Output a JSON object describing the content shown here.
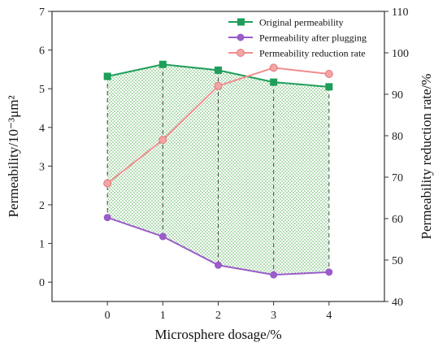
{
  "chart_data": {
    "type": "line",
    "title": "",
    "xlabel": "Microsphere dosage/%",
    "ylabel": "Permeability/10⁻³μm²",
    "y2label": "Permeability reduction rate/%",
    "x": [
      0,
      1,
      2,
      3,
      4
    ],
    "xlim": [
      -1,
      5
    ],
    "xticks": [
      "0",
      "1",
      "2",
      "3",
      "4"
    ],
    "ylim": [
      -0.5,
      7
    ],
    "yticks": [
      "0",
      "1",
      "2",
      "3",
      "4",
      "5",
      "6",
      "7"
    ],
    "y2lim": [
      40,
      110
    ],
    "y2ticks": [
      "40",
      "50",
      "60",
      "70",
      "80",
      "90",
      "100",
      "110"
    ],
    "grid": false,
    "legend_position": "top-right",
    "shaded_region": "between Original permeability and Permeability after plugging",
    "series": [
      {
        "name": "Original permeability",
        "axis": "left",
        "marker": "square",
        "color": "#1e9e5a",
        "values": [
          5.32,
          5.63,
          5.48,
          5.17,
          5.05
        ]
      },
      {
        "name": "Permeability after plugging",
        "axis": "left",
        "marker": "circle",
        "color": "#9a5cc8",
        "values": [
          1.67,
          1.18,
          0.44,
          0.19,
          0.26
        ]
      },
      {
        "name": "Permeability reduction rate",
        "axis": "right",
        "marker": "circle",
        "color": "#f08c8c",
        "values": [
          68.5,
          79,
          92,
          96.4,
          94.9
        ]
      }
    ]
  }
}
